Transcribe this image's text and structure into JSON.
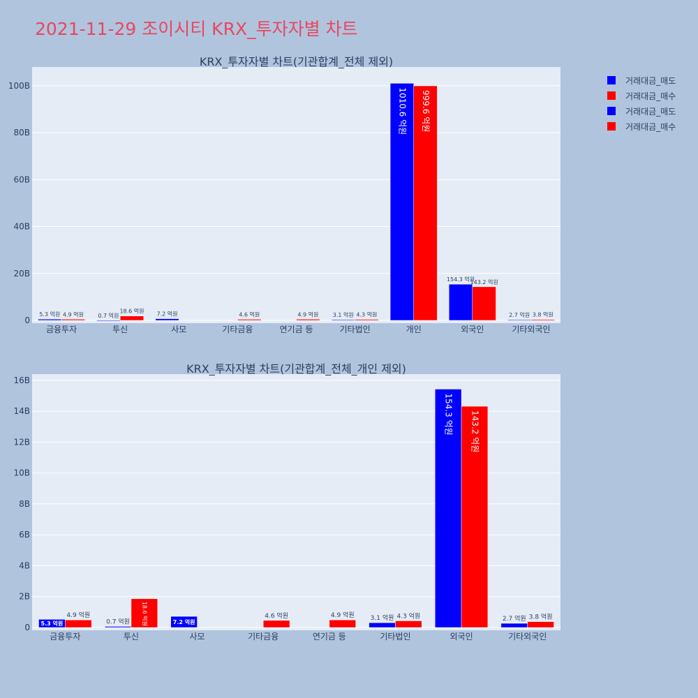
{
  "page_title": "2021-11-29 조이시티 KRX_투자자별 차트",
  "colors": {
    "sell": "#0000ff",
    "buy": "#ff0000",
    "title": "#e8475f",
    "plot_bg": "#e5ecf6",
    "page_bg": "#b0c4de"
  },
  "legend": [
    {
      "label": "거래대금_매도",
      "color": "#0000ff"
    },
    {
      "label": "거래대금_매수",
      "color": "#ff0000"
    },
    {
      "label": "거래대금_매도",
      "color": "#0000ff"
    },
    {
      "label": "거래대금_매수",
      "color": "#ff0000"
    }
  ],
  "chart_data": [
    {
      "type": "bar",
      "title": "KRX_투자자별 차트(기관합계_전체 제외)",
      "categories": [
        "금융투자",
        "투신",
        "사모",
        "기타금융",
        "연기금 등",
        "기타법인",
        "개인",
        "외국인",
        "기타외국인"
      ],
      "series": [
        {
          "name": "거래대금_매도",
          "color": "#0000ff",
          "values": [
            530000000,
            70000000,
            720000000,
            0,
            0,
            310000000,
            101060000000,
            15430000000,
            270000000
          ],
          "labels": [
            "5.3 억원",
            "0.7 억원",
            "7.2 억원",
            "",
            "",
            "3.1 억원",
            "1010.6 억원",
            "154.3 억원",
            "2.7 억원"
          ]
        },
        {
          "name": "거래대금_매수",
          "color": "#ff0000",
          "values": [
            490000000,
            1860000000,
            0,
            460000000,
            490000000,
            430000000,
            99960000000,
            14320000000,
            380000000
          ],
          "labels": [
            "4.9 억원",
            "18.6 억원",
            "",
            "4.6 억원",
            "4.9 억원",
            "4.3 억원",
            "999.6 억원",
            "143.2 억원",
            "3.8 억원"
          ]
        }
      ],
      "yticks": [
        "0",
        "20B",
        "40B",
        "60B",
        "80B",
        "100B"
      ],
      "ytick_values": [
        0,
        20000000000,
        40000000000,
        60000000000,
        80000000000,
        100000000000
      ],
      "ylim": [
        0,
        108000000000
      ],
      "grid": true
    },
    {
      "type": "bar",
      "title": "KRX_투자자별 차트(기관합계_전체_개인 제외)",
      "categories": [
        "금융투자",
        "투신",
        "사모",
        "기타금융",
        "연기금 등",
        "기타법인",
        "외국인",
        "기타외국인"
      ],
      "series": [
        {
          "name": "거래대금_매도",
          "color": "#0000ff",
          "values": [
            530000000,
            70000000,
            720000000,
            0,
            0,
            310000000,
            15430000000,
            270000000
          ],
          "labels": [
            "5.3 억원",
            "0.7 억원",
            "7.2 억원",
            "",
            "",
            "3.1 억원",
            "154.3 억원",
            "2.7 억원"
          ]
        },
        {
          "name": "거래대금_매수",
          "color": "#ff0000",
          "values": [
            490000000,
            1860000000,
            0,
            460000000,
            490000000,
            430000000,
            14320000000,
            380000000
          ],
          "labels": [
            "4.9 억원",
            "18.6 억원",
            "",
            "4.6 억원",
            "4.9 억원",
            "4.3 억원",
            "143.2 억원",
            "3.8 억원"
          ]
        }
      ],
      "yticks": [
        "0",
        "2B",
        "4B",
        "6B",
        "8B",
        "10B",
        "12B",
        "14B",
        "16B"
      ],
      "ytick_values": [
        0,
        2000000000,
        4000000000,
        6000000000,
        8000000000,
        10000000000,
        12000000000,
        14000000000,
        16000000000
      ],
      "ylim": [
        0,
        16400000000
      ],
      "grid": true
    }
  ]
}
